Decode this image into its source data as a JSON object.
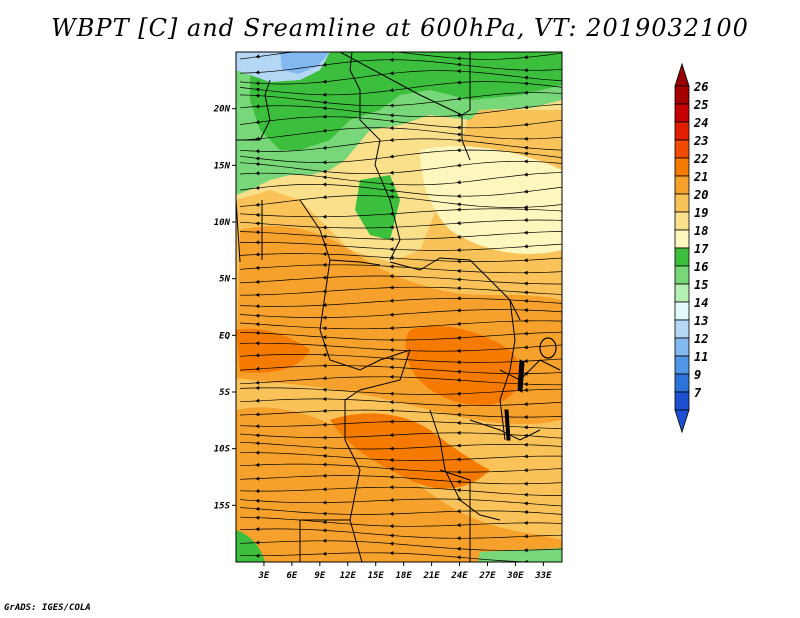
{
  "title": "WBPT [C] and Sreamline at 600hPa, VT: 2019032100",
  "footer": "GrADS: IGES/COLA",
  "map": {
    "lat_ticks": [
      {
        "label": "20N",
        "lat": 20
      },
      {
        "label": "15N",
        "lat": 15
      },
      {
        "label": "10N",
        "lat": 10
      },
      {
        "label": "5N",
        "lat": 5
      },
      {
        "label": "EQ",
        "lat": 0
      },
      {
        "label": "5S",
        "lat": -5
      },
      {
        "label": "10S",
        "lat": -10
      },
      {
        "label": "15S",
        "lat": -15
      }
    ],
    "lon_ticks": [
      {
        "label": "3E",
        "lon": 3
      },
      {
        "label": "6E",
        "lon": 6
      },
      {
        "label": "9E",
        "lon": 9
      },
      {
        "label": "12E",
        "lon": 12
      },
      {
        "label": "15E",
        "lon": 15
      },
      {
        "label": "18E",
        "lon": 18
      },
      {
        "label": "21E",
        "lon": 21
      },
      {
        "label": "24E",
        "lon": 24
      },
      {
        "label": "27E",
        "lon": 27
      },
      {
        "label": "30E",
        "lon": 30
      },
      {
        "label": "33E",
        "lon": 33
      }
    ],
    "lon_range": [
      0,
      35
    ],
    "lat_range": [
      -20,
      25
    ]
  },
  "colorbar": {
    "levels": [
      {
        "label": "26",
        "color": "#a50000"
      },
      {
        "label": "25",
        "color": "#c40000"
      },
      {
        "label": "24",
        "color": "#e01e00"
      },
      {
        "label": "23",
        "color": "#f04b00"
      },
      {
        "label": "22",
        "color": "#f57a00"
      },
      {
        "label": "21",
        "color": "#f7a12d"
      },
      {
        "label": "20",
        "color": "#f9c35a"
      },
      {
        "label": "19",
        "color": "#fbe08c"
      },
      {
        "label": "18",
        "color": "#fdf7be"
      },
      {
        "label": "17",
        "color": "#3cbf3c"
      },
      {
        "label": "16",
        "color": "#78d778"
      },
      {
        "label": "15",
        "color": "#b4f0b4"
      },
      {
        "label": "14",
        "color": "#e1fafa"
      },
      {
        "label": "13",
        "color": "#b4d7f5"
      },
      {
        "label": "12",
        "color": "#82b9f0"
      },
      {
        "label": "11",
        "color": "#5096e6"
      },
      {
        "label": "9",
        "color": "#2d73dc"
      },
      {
        "label": "7",
        "color": "#1e50d2"
      }
    ],
    "top_arrow_color": "#960000",
    "bottom_arrow_color": "#1e50d2"
  }
}
